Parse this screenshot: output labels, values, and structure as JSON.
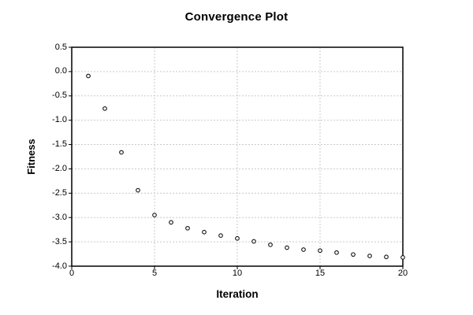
{
  "title": "Convergence Plot",
  "chart_data": {
    "type": "scatter",
    "title": "Convergence Plot",
    "xlabel": "Iteration",
    "ylabel": "Fitness",
    "x": [
      1,
      2,
      3,
      4,
      5,
      6,
      7,
      8,
      9,
      10,
      11,
      12,
      13,
      14,
      15,
      16,
      17,
      18,
      19,
      20
    ],
    "y": [
      -0.09,
      -0.76,
      -1.66,
      -2.44,
      -2.95,
      -3.1,
      -3.22,
      -3.3,
      -3.37,
      -3.43,
      -3.49,
      -3.56,
      -3.62,
      -3.66,
      -3.68,
      -3.72,
      -3.76,
      -3.79,
      -3.81,
      -3.82
    ],
    "xlim": [
      0,
      20
    ],
    "ylim": [
      -4.0,
      0.5
    ],
    "x_ticks": [
      0,
      5,
      10,
      15,
      20
    ],
    "x_tick_labels": [
      "0",
      "5",
      "10",
      "15",
      "20"
    ],
    "y_ticks": [
      0.5,
      0.0,
      -0.5,
      -1.0,
      -1.5,
      -2.0,
      -2.5,
      -3.0,
      -3.5,
      -4.0
    ],
    "y_tick_labels": [
      "0.5",
      "0.0",
      "-0.5",
      "-1.0",
      "-1.5",
      "-2.0",
      "-2.5",
      "-3.0",
      "-3.5",
      "-4.0"
    ],
    "grid": true,
    "x_gridlines": [
      5,
      10,
      15
    ],
    "y_gridlines": [
      0.0,
      -0.5,
      -1.0,
      -1.5,
      -2.0,
      -2.5,
      -3.0,
      -3.5
    ],
    "legend": null,
    "marker": "open-circle",
    "colors": {
      "background": "#ffffff",
      "axis_box": "#000000",
      "grid": "#c9c9c9",
      "marker_stroke": "#111111",
      "marker_fill": "#ffffff",
      "text": "#000000"
    }
  }
}
